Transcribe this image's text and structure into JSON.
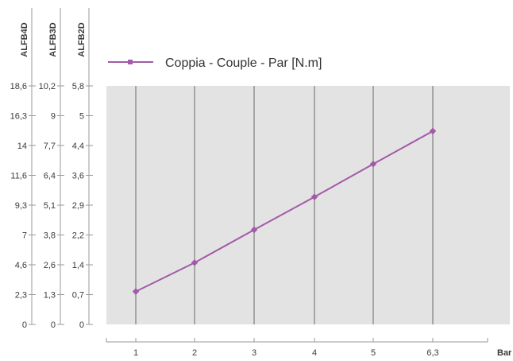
{
  "chart_data": {
    "type": "line",
    "legend": {
      "label": "Coppia - Couple - Par [N.m]",
      "placement": "top-left"
    },
    "x_axis": {
      "label": "Bar",
      "categories": [
        "1",
        "2",
        "3",
        "4",
        "5",
        "6,3"
      ]
    },
    "y_axes": [
      {
        "label": "ALFB4D",
        "ticks": [
          "0",
          "2,3",
          "4,6",
          "7",
          "9,3",
          "11,6",
          "14",
          "16,3",
          "18,6"
        ]
      },
      {
        "label": "ALFB3D",
        "ticks": [
          "0",
          "1,3",
          "2,6",
          "3,8",
          "5,1",
          "6,4",
          "7,7",
          "9",
          "10,2"
        ]
      },
      {
        "label": "ALFB2D",
        "ticks": [
          "0",
          "0,7",
          "1,4",
          "2,2",
          "2,9",
          "3,6",
          "4,4",
          "5",
          "5,8"
        ]
      }
    ],
    "grid": {
      "vertical": true,
      "horizontal": false
    },
    "series": [
      {
        "name": "Coppia - Couple - Par [N.m]",
        "axis": "ALFB2D",
        "x": [
          "1",
          "2",
          "3",
          "4",
          "5",
          "6,3"
        ],
        "y": [
          0.8,
          1.5,
          2.3,
          3.1,
          3.9,
          4.7
        ]
      }
    ],
    "colors": {
      "series": "#a35aa8",
      "plot_background": "#e3e3e3",
      "grid": "#8c8c8c",
      "axis": "#9a9a9a",
      "text": "#3a3a3a"
    }
  }
}
